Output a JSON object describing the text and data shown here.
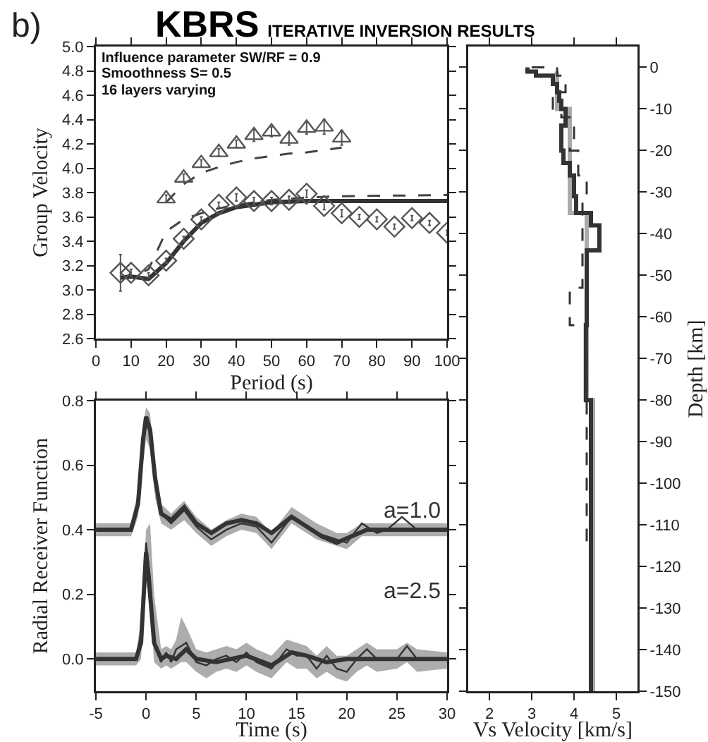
{
  "chart_data": [
    {
      "type": "line",
      "title": "KBRS",
      "subtitle": "ITERATIVE INVERSION RESULTS",
      "xlabel": "Period (s)",
      "ylabel": "Group Velocity",
      "annotations": [
        "b)",
        "Influence parameter SW/RF = 0.9",
        "Smoothness S= 0.5",
        "16 layers varying"
      ],
      "xlim": [
        0,
        100
      ],
      "xticks": [
        0,
        10,
        20,
        30,
        40,
        50,
        60,
        70,
        80,
        90,
        100
      ],
      "ylim": [
        2.6,
        5.0
      ],
      "yticks": [
        2.6,
        2.8,
        {
          "value": 3.0,
          "label": "3.0"
        },
        3.2,
        3.4,
        3.6,
        3.8,
        {
          "value": 4.0,
          "label": "4.0"
        },
        4.2,
        4.4,
        4.6,
        4.8,
        {
          "value": 5.0,
          "label": "5.0"
        }
      ],
      "series": [
        {
          "line_style": "dashed",
          "color": "#444444",
          "x": [
            20,
            25,
            30,
            35,
            40,
            45,
            50,
            55,
            60,
            65,
            70
          ],
          "values": [
            3.72,
            3.87,
            3.96,
            4.01,
            4.05,
            4.08,
            4.1,
            4.12,
            4.13,
            4.15,
            4.17
          ]
        },
        {
          "line_style": "dashed",
          "color": "#444444",
          "x": [
            7,
            10,
            15,
            20,
            25,
            30,
            35,
            40,
            50,
            60,
            70,
            100
          ],
          "values": [
            3.1,
            3.1,
            3.17,
            3.48,
            3.58,
            3.63,
            3.67,
            3.7,
            3.74,
            3.76,
            3.77,
            3.78
          ]
        },
        {
          "line_style": "solid",
          "color": "#333333",
          "x": [
            7,
            10,
            15,
            20,
            25,
            30,
            35,
            40,
            50,
            60,
            80,
            100
          ],
          "values": [
            3.1,
            3.11,
            3.09,
            3.22,
            3.4,
            3.55,
            3.63,
            3.68,
            3.72,
            3.73,
            3.73,
            3.73
          ]
        },
        {
          "type": "scatter",
          "marker": "triangle",
          "color": "#555555",
          "x": [
            20,
            25,
            30,
            35,
            40,
            45,
            50,
            55,
            60,
            65,
            70
          ],
          "values": [
            3.75,
            3.92,
            4.04,
            4.13,
            4.2,
            4.27,
            4.3,
            4.24,
            4.33,
            4.34,
            4.25
          ],
          "errors": [
            0.03,
            0.03,
            0.03,
            0.03,
            0.03,
            0.05,
            0.04,
            0.05,
            0.05,
            0.06,
            0.06
          ]
        },
        {
          "type": "scatter",
          "marker": "diamond",
          "color": "#555555",
          "x": [
            7,
            10,
            15,
            20,
            25,
            30,
            35,
            40,
            45,
            50,
            55,
            60,
            65,
            70,
            75,
            80,
            85,
            90,
            95,
            100
          ],
          "values": [
            3.14,
            3.14,
            3.12,
            3.24,
            3.42,
            3.58,
            3.7,
            3.76,
            3.73,
            3.73,
            3.74,
            3.79,
            3.69,
            3.63,
            3.6,
            3.58,
            3.52,
            3.59,
            3.55,
            3.47
          ],
          "errors": [
            0.15,
            0.03,
            0.02,
            0.02,
            0.02,
            0.02,
            0.02,
            0.03,
            0.03,
            0.03,
            0.03,
            0.03,
            0.03,
            0.03,
            0.02,
            0.02,
            0.02,
            0.02,
            0.02,
            0.02
          ]
        }
      ]
    },
    {
      "type": "line",
      "xlabel": "Time (s)",
      "ylabel": "Radial Receiver Function",
      "annotations": [
        "a=1.0",
        "a=2.5"
      ],
      "xlim": [
        -5,
        30
      ],
      "xticks": [
        -5,
        0,
        5,
        10,
        15,
        20,
        25,
        30
      ],
      "ylim": [
        -0.1,
        0.8
      ],
      "yticks": [
        {
          "value": 0.0,
          "label": "0.0"
        },
        0.2,
        0.4,
        0.6,
        0.8
      ],
      "series": [
        {
          "color": "#333333",
          "line_style": "solid",
          "x": [
            -5,
            -1.5,
            -0.8,
            -0.3,
            0,
            0.4,
            0.9,
            1.5,
            2.5,
            3.8,
            5,
            6.5,
            8,
            9.5,
            11,
            12.5,
            14.5,
            16,
            17,
            19,
            20,
            21.5,
            23,
            24,
            25.5,
            27,
            30
          ],
          "values": [
            0.4,
            0.4,
            0.47,
            0.66,
            0.73,
            0.7,
            0.55,
            0.45,
            0.42,
            0.46,
            0.41,
            0.37,
            0.4,
            0.42,
            0.41,
            0.36,
            0.44,
            0.41,
            0.39,
            0.37,
            0.36,
            0.42,
            0.39,
            0.4,
            0.44,
            0.4,
            0.4
          ],
          "lower": [
            0.38,
            0.38,
            0.44,
            0.61,
            0.68,
            0.65,
            0.5,
            0.42,
            0.4,
            0.43,
            0.39,
            0.35,
            0.38,
            0.4,
            0.39,
            0.34,
            0.42,
            0.39,
            0.37,
            0.35,
            0.34,
            0.38,
            0.38,
            0.38,
            0.38,
            0.38,
            0.38
          ],
          "upper": [
            0.42,
            0.42,
            0.52,
            0.72,
            0.78,
            0.76,
            0.6,
            0.48,
            0.45,
            0.49,
            0.44,
            0.4,
            0.43,
            0.45,
            0.44,
            0.39,
            0.47,
            0.44,
            0.42,
            0.39,
            0.39,
            0.42,
            0.42,
            0.42,
            0.42,
            0.42,
            0.42
          ]
        },
        {
          "color": "#333333",
          "line_style": "solid",
          "x": [
            -5,
            -1,
            -0.5,
            0,
            0.4,
            0.8,
            1.5,
            2,
            2.5,
            3,
            3.5,
            4,
            5,
            6,
            7,
            8,
            9,
            10,
            11,
            12.5,
            14,
            15,
            16,
            17,
            18,
            19,
            20,
            21,
            22,
            23,
            25,
            26,
            27,
            30
          ],
          "values": [
            0,
            0,
            0.08,
            0.36,
            0.25,
            0.05,
            -0.01,
            0.02,
            -0.01,
            0.03,
            0.04,
            0.05,
            -0.01,
            -0.02,
            0,
            0.01,
            -0.01,
            0.02,
            -0.01,
            -0.03,
            0.03,
            0.01,
            0.01,
            -0.03,
            0.01,
            -0.03,
            -0.04,
            0,
            0.03,
            0,
            0,
            0.04,
            0,
            0
          ],
          "lower": [
            -0.02,
            -0.02,
            0.0,
            0.28,
            0.15,
            -0.01,
            -0.03,
            -0.02,
            -0.03,
            -0.02,
            -0.01,
            -0.01,
            -0.04,
            -0.06,
            -0.04,
            -0.03,
            -0.04,
            -0.02,
            -0.04,
            -0.06,
            -0.01,
            -0.03,
            -0.03,
            -0.06,
            -0.04,
            -0.06,
            -0.07,
            -0.04,
            -0.02,
            -0.04,
            -0.03,
            -0.01,
            -0.04,
            -0.03
          ],
          "upper": [
            0.02,
            0.02,
            0.12,
            0.4,
            0.42,
            0.2,
            0.03,
            0.04,
            0.03,
            0.06,
            0.13,
            0.1,
            0.03,
            0.02,
            0.03,
            0.04,
            0.03,
            0.05,
            0.03,
            0.01,
            0.06,
            0.05,
            0.04,
            0.01,
            0.04,
            0.01,
            0.01,
            0.03,
            0.05,
            0.03,
            0.03,
            0.05,
            0.03,
            0.02
          ]
        },
        {
          "color": "#333333",
          "line_style": "solid",
          "x": [
            -5,
            -1.5,
            -0.8,
            -0.3,
            0,
            0.4,
            0.9,
            1.5,
            2.5,
            3.8,
            5,
            6.5,
            8,
            9.5,
            11,
            12.5,
            14.5,
            16,
            17.5,
            19,
            20.5,
            22,
            30
          ],
          "values": [
            0.4,
            0.4,
            0.48,
            0.68,
            0.75,
            0.71,
            0.56,
            0.45,
            0.43,
            0.47,
            0.42,
            0.39,
            0.42,
            0.43,
            0.42,
            0.39,
            0.44,
            0.41,
            0.38,
            0.36,
            0.38,
            0.4,
            0.4
          ]
        },
        {
          "color": "#333333",
          "line_style": "solid",
          "x": [
            -5,
            -1,
            -0.5,
            0,
            0.4,
            0.8,
            1.5,
            2,
            3,
            4,
            5,
            7,
            10,
            12.5,
            14.5,
            16,
            18,
            20,
            30
          ],
          "values": [
            0,
            0,
            0.05,
            0.33,
            0.2,
            0.05,
            0,
            0.01,
            0,
            0.03,
            0,
            -0.01,
            0.01,
            -0.02,
            0.02,
            0.01,
            -0.01,
            0,
            0
          ]
        }
      ]
    },
    {
      "type": "line",
      "xlabel": "Vs Velocity [km/s]",
      "ylabel": "Depth [km]",
      "xlim": [
        1.5,
        5.5
      ],
      "xticks": [
        2,
        3,
        4,
        5
      ],
      "ylim": [
        -150,
        5
      ],
      "yticks": [
        0,
        -10,
        -20,
        -30,
        -40,
        -50,
        -60,
        -70,
        -80,
        -90,
        -100,
        -110,
        -120,
        -130,
        -140,
        -150
      ],
      "series": [
        {
          "color": "#aaaaaa",
          "line_style": "solid",
          "x": [
            3.6,
            3.6,
            3.9,
            3.9,
            4.3,
            4.3,
            4.45,
            4.45
          ],
          "values": [
            -1,
            -10,
            -10,
            -35,
            -35,
            -80,
            -80,
            -150
          ]
        },
        {
          "color": "#333333",
          "line_style": "dashed",
          "x": [
            3.0,
            3.6,
            3.6,
            3.8,
            3.8,
            3.5,
            3.5,
            3.7,
            3.7,
            4.0,
            4.0,
            3.9,
            3.9,
            4.1,
            4.1,
            4.3,
            4.3,
            4.2,
            4.2,
            3.9,
            3.9,
            4.3,
            4.3,
            4.4,
            4.4
          ],
          "values": [
            0,
            0,
            -2,
            -2,
            -6,
            -6,
            -11,
            -11,
            -12,
            -12,
            -17,
            -17,
            -20,
            -20,
            -26,
            -26,
            -32,
            -32,
            -53,
            -53,
            -62,
            -62,
            -115,
            -115,
            -150
          ]
        },
        {
          "color": "#333333",
          "line_style": "solid",
          "x": [
            2.9,
            2.9,
            3.1,
            3.1,
            3.5,
            3.5,
            3.6,
            3.6,
            3.65,
            3.65,
            3.7,
            3.7,
            3.8,
            3.8,
            3.7,
            3.7,
            3.75,
            3.75,
            3.9,
            3.9,
            4.0,
            4.0,
            4.05,
            4.05,
            4.4,
            4.4,
            4.6,
            4.6,
            4.3,
            4.3,
            4.28,
            4.28,
            4.4,
            4.4
          ],
          "values": [
            0,
            -1,
            -1,
            -2,
            -2,
            -4,
            -4,
            -6,
            -6,
            -8,
            -8,
            -10,
            -10,
            -14,
            -14,
            -20,
            -20,
            -23,
            -23,
            -26,
            -26,
            -31,
            -31,
            -35,
            -35,
            -38,
            -38,
            -44,
            -44,
            -62,
            -62,
            -80,
            -80,
            -150
          ]
        }
      ]
    }
  ]
}
